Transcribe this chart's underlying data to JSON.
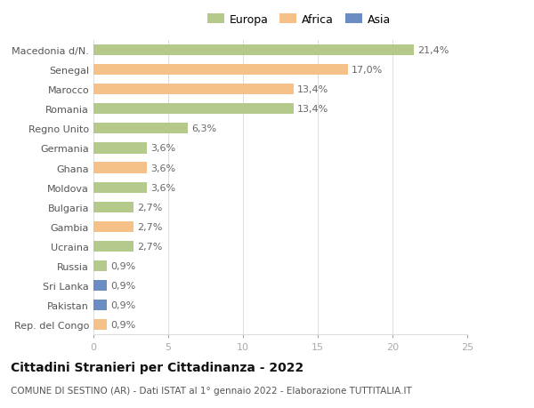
{
  "categories": [
    "Rep. del Congo",
    "Pakistan",
    "Sri Lanka",
    "Russia",
    "Ucraina",
    "Gambia",
    "Bulgaria",
    "Moldova",
    "Ghana",
    "Germania",
    "Regno Unito",
    "Romania",
    "Marocco",
    "Senegal",
    "Macedonia d/N."
  ],
  "values": [
    0.9,
    0.9,
    0.9,
    0.9,
    2.7,
    2.7,
    2.7,
    3.6,
    3.6,
    3.6,
    6.3,
    13.4,
    13.4,
    17.0,
    21.4
  ],
  "labels": [
    "0,9%",
    "0,9%",
    "0,9%",
    "0,9%",
    "2,7%",
    "2,7%",
    "2,7%",
    "3,6%",
    "3,6%",
    "3,6%",
    "6,3%",
    "13,4%",
    "13,4%",
    "17,0%",
    "21,4%"
  ],
  "colors": [
    "#f5c189",
    "#6b8dc4",
    "#6b8dc4",
    "#b5c98a",
    "#b5c98a",
    "#f5c189",
    "#b5c98a",
    "#b5c98a",
    "#f5c189",
    "#b5c98a",
    "#b5c98a",
    "#b5c98a",
    "#f5c189",
    "#f5c189",
    "#b5c98a"
  ],
  "legend": {
    "Europa": "#b5c98a",
    "Africa": "#f5c189",
    "Asia": "#6b8dc4"
  },
  "title": "Cittadini Stranieri per Cittadinanza - 2022",
  "subtitle": "COMUNE DI SESTINO (AR) - Dati ISTAT al 1° gennaio 2022 - Elaborazione TUTTITALIA.IT",
  "xlim": [
    0,
    25
  ],
  "xticks": [
    0,
    5,
    10,
    15,
    20,
    25
  ],
  "background_color": "#ffffff",
  "bar_height": 0.55,
  "grid_color": "#dddddd",
  "label_fontsize": 8,
  "title_fontsize": 10,
  "subtitle_fontsize": 7.5,
  "tick_fontsize": 8
}
